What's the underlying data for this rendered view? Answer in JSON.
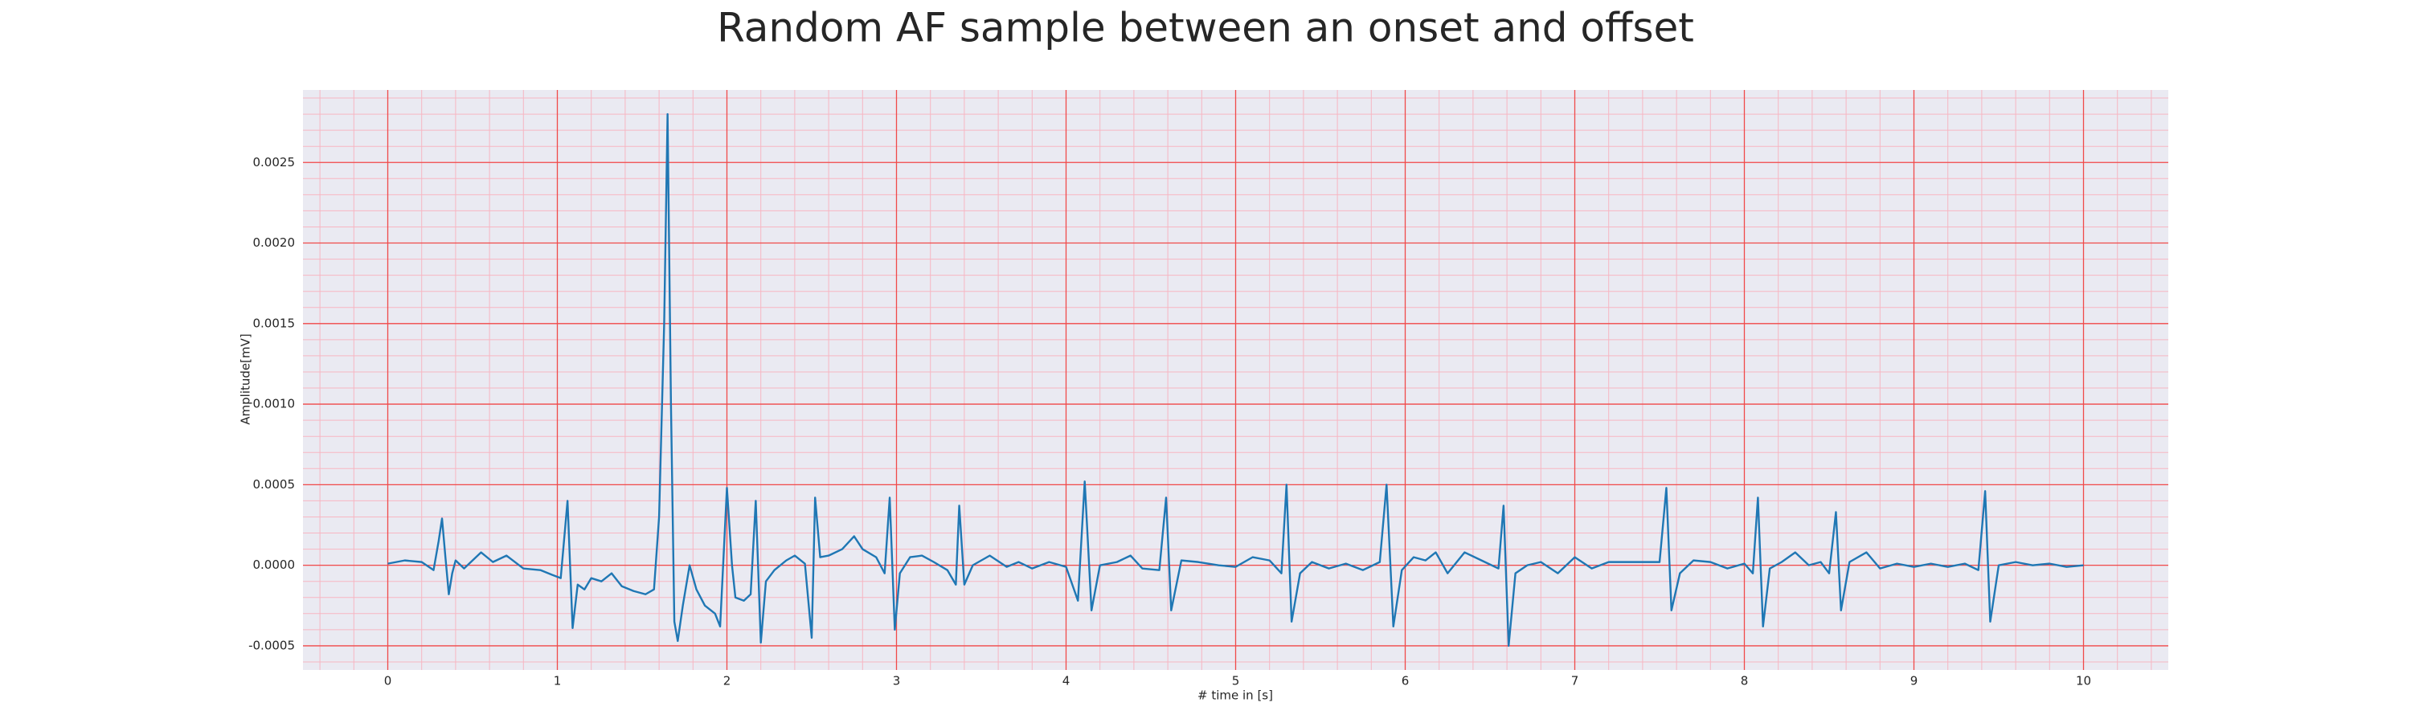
{
  "chart_data": {
    "type": "line",
    "title": "Random AF sample between an onset and offset",
    "xlabel": "# time in [s]",
    "ylabel": "Amplitude[mV]",
    "x": [
      0,
      0.1,
      0.2,
      0.27,
      0.3,
      0.32,
      0.34,
      0.36,
      0.38,
      0.4,
      0.45,
      0.55,
      0.62,
      0.7,
      0.8,
      0.9,
      0.97,
      1.02,
      1.06,
      1.09,
      1.12,
      1.16,
      1.2,
      1.26,
      1.32,
      1.38,
      1.45,
      1.52,
      1.57,
      1.6,
      1.63,
      1.65,
      1.67,
      1.69,
      1.71,
      1.74,
      1.78,
      1.82,
      1.87,
      1.93,
      1.96,
      2.0,
      2.03,
      2.05,
      2.1,
      2.14,
      2.17,
      2.2,
      2.23,
      2.28,
      2.35,
      2.4,
      2.46,
      2.5,
      2.52,
      2.55,
      2.6,
      2.68,
      2.75,
      2.8,
      2.88,
      2.93,
      2.96,
      2.99,
      3.02,
      3.08,
      3.15,
      3.22,
      3.3,
      3.35,
      3.37,
      3.4,
      3.45,
      3.55,
      3.65,
      3.72,
      3.8,
      3.9,
      4.0,
      4.07,
      4.11,
      4.15,
      4.2,
      4.3,
      4.38,
      4.45,
      4.55,
      4.59,
      4.62,
      4.68,
      4.78,
      4.9,
      5.0,
      5.1,
      5.2,
      5.27,
      5.3,
      5.33,
      5.38,
      5.45,
      5.55,
      5.65,
      5.75,
      5.85,
      5.89,
      5.93,
      5.98,
      6.05,
      6.12,
      6.18,
      6.25,
      6.35,
      6.45,
      6.55,
      6.58,
      6.61,
      6.65,
      6.72,
      6.8,
      6.9,
      7.0,
      7.1,
      7.2,
      7.3,
      7.4,
      7.5,
      7.54,
      7.57,
      7.62,
      7.7,
      7.8,
      7.9,
      8.0,
      8.05,
      8.08,
      8.11,
      8.15,
      8.22,
      8.3,
      8.38,
      8.45,
      8.5,
      8.54,
      8.57,
      8.62,
      8.72,
      8.8,
      8.9,
      9.0,
      9.1,
      9.2,
      9.3,
      9.38,
      9.42,
      9.45,
      9.5,
      9.6,
      9.7,
      9.8,
      9.9,
      10.0
    ],
    "series": [
      {
        "color": "#1f77b4",
        "values": [
          1e-05,
          3e-05,
          2e-05,
          -3e-05,
          0.00015,
          0.00029,
          5e-05,
          -0.00018,
          -5e-05,
          3e-05,
          -2e-05,
          8e-05,
          2e-05,
          6e-05,
          -2e-05,
          -3e-05,
          -6e-05,
          -8e-05,
          0.0004,
          -0.00039,
          -0.00012,
          -0.00015,
          -8e-05,
          -0.0001,
          -5e-05,
          -0.00013,
          -0.00016,
          -0.00018,
          -0.00015,
          0.0003,
          0.0015,
          0.0028,
          0.001,
          -0.00035,
          -0.00047,
          -0.00025,
          0,
          -0.00015,
          -0.00025,
          -0.0003,
          -0.00038,
          0.00048,
          0,
          -0.0002,
          -0.00022,
          -0.00018,
          0.0004,
          -0.00048,
          -0.0001,
          -3e-05,
          3e-05,
          6e-05,
          1e-05,
          -0.00045,
          0.00042,
          5e-05,
          6e-05,
          0.0001,
          0.00018,
          0.0001,
          5e-05,
          -5e-05,
          0.00042,
          -0.0004,
          -5e-05,
          5e-05,
          6e-05,
          2e-05,
          -3e-05,
          -0.00012,
          0.00037,
          -0.00012,
          0,
          6e-05,
          -1e-05,
          2e-05,
          -2e-05,
          2e-05,
          -1e-05,
          -0.00022,
          0.00052,
          -0.00028,
          0,
          2e-05,
          6e-05,
          -2e-05,
          -3e-05,
          0.00042,
          -0.00028,
          3e-05,
          2e-05,
          0,
          -1e-05,
          5e-05,
          3e-05,
          -5e-05,
          0.0005,
          -0.00035,
          -5e-05,
          2e-05,
          -2e-05,
          1e-05,
          -3e-05,
          2e-05,
          0.0005,
          -0.00038,
          -3e-05,
          5e-05,
          3e-05,
          8e-05,
          -5e-05,
          8e-05,
          3e-05,
          -2e-05,
          0.00037,
          -0.0005,
          -5e-05,
          0,
          2e-05,
          -5e-05,
          5e-05,
          -2e-05,
          2e-05,
          2e-05,
          2e-05,
          2e-05,
          0.00048,
          -0.00028,
          -5e-05,
          3e-05,
          2e-05,
          -2e-05,
          1e-05,
          -5e-05,
          0.00042,
          -0.00038,
          -2e-05,
          2e-05,
          8e-05,
          0,
          2e-05,
          -5e-05,
          0.00033,
          -0.00028,
          2e-05,
          8e-05,
          -2e-05,
          1e-05,
          -1e-05,
          1e-05,
          -1e-05,
          1e-05,
          -3e-05,
          0.00046,
          -0.00035,
          0,
          2e-05,
          0,
          1e-05,
          -1e-05,
          0
        ]
      }
    ],
    "xlim": [
      -0.5,
      10.5
    ],
    "ylim": [
      -0.00065,
      0.00295
    ],
    "xticks": [
      0,
      1,
      2,
      3,
      4,
      5,
      6,
      7,
      8,
      9,
      10
    ],
    "yticks": [
      -0.0005,
      {
        "value": 0,
        "label": "0.0000"
      },
      0.0005,
      {
        "value": 0.001,
        "label": "0.0010"
      },
      0.0015,
      {
        "value": 0.002,
        "label": "0.0020"
      },
      0.0025
    ],
    "grid": true,
    "minor_grid": true
  }
}
